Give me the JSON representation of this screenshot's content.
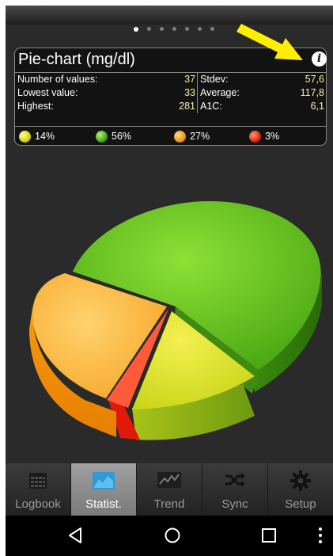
{
  "pager": {
    "count": 7,
    "active": 0
  },
  "panel": {
    "title": "Pie-chart (mg/dl)",
    "info_icon": "info-icon",
    "stats": [
      {
        "left_label": "Number of values:",
        "left_value": "37",
        "right_label": "Stdev:",
        "right_value": "57,6"
      },
      {
        "left_label": "Lowest value:",
        "left_value": "33",
        "right_label": "Average:",
        "right_value": "117,8"
      },
      {
        "left_label": "Highest:",
        "left_value": "281",
        "right_label": "A1C:",
        "right_value": "6,1"
      }
    ],
    "legend": [
      {
        "label": "14%",
        "color": "#e2e11f"
      },
      {
        "label": "56%",
        "color": "#4caa16"
      },
      {
        "label": "27%",
        "color": "#f2a21c"
      },
      {
        "label": "3%",
        "color": "#e02310"
      }
    ]
  },
  "chart_data": {
    "type": "pie",
    "values": [
      14,
      56,
      27,
      3
    ],
    "colors": [
      "#e2e11f",
      "#6cc41f",
      "#ffb43a",
      "#ff5a3a"
    ]
  },
  "tabs": [
    {
      "label": "Logbook",
      "icon": "calendar-icon",
      "active": false
    },
    {
      "label": "Statist.",
      "icon": "chart-icon",
      "active": true
    },
    {
      "label": "Trend",
      "icon": "trend-icon",
      "active": false
    },
    {
      "label": "Sync",
      "icon": "shuffle-icon",
      "active": false
    },
    {
      "label": "Setup",
      "icon": "gear-icon",
      "active": false
    }
  ],
  "system_nav": {
    "back": "back-icon",
    "home": "home-icon",
    "recents": "recents-icon",
    "menu": "overflow-menu-icon"
  }
}
